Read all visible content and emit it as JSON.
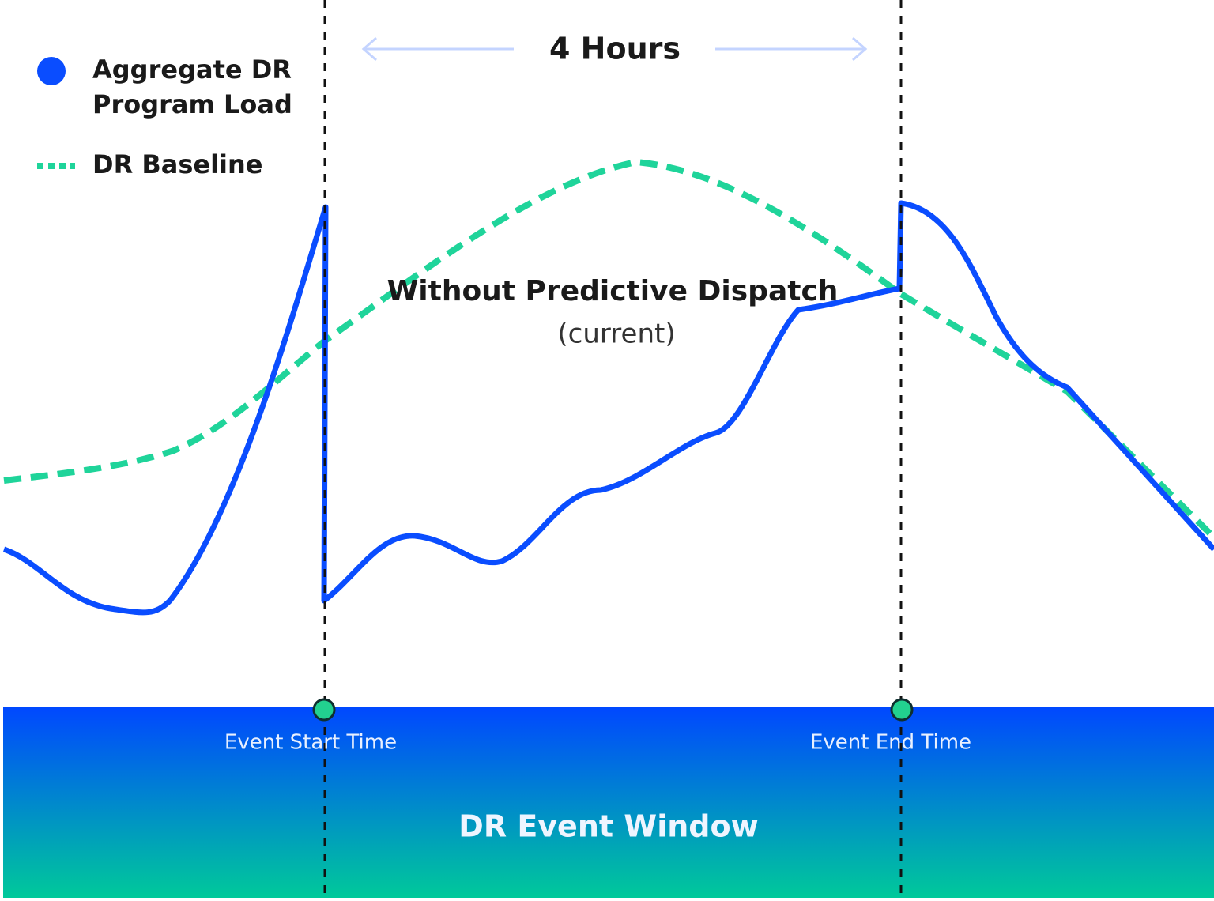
{
  "legend": {
    "load": [
      "Aggregate DR",
      "Program Load"
    ],
    "baseline": "DR Baseline"
  },
  "duration": "4 Hours",
  "annotation": {
    "title": "Without Predictive Dispatch",
    "subtitle": "(current)"
  },
  "markers": {
    "start": "Event Start Time",
    "end": "Event End Time"
  },
  "window": "DR Event Window"
}
